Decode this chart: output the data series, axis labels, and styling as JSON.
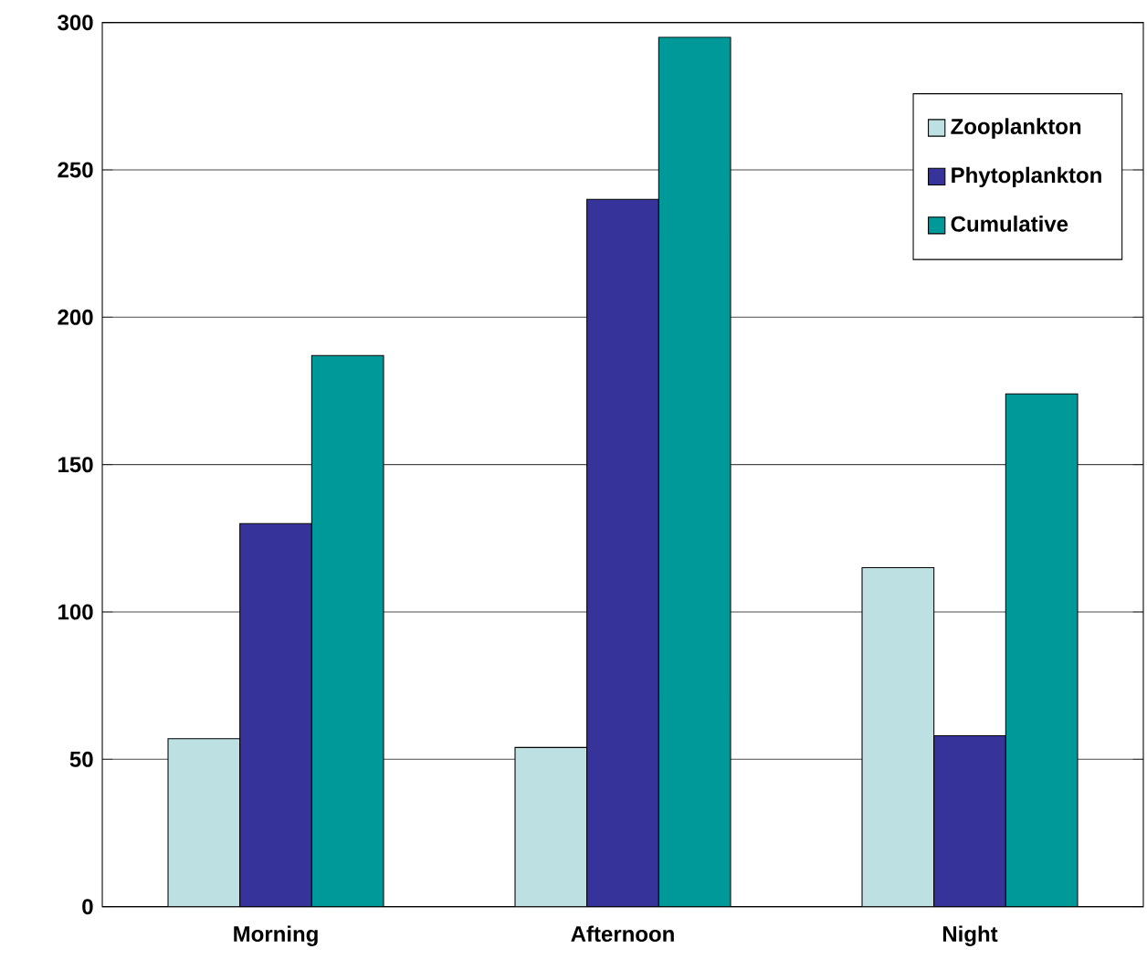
{
  "chart_data": {
    "type": "bar",
    "categories": [
      "Morning",
      "Afternoon",
      "Night"
    ],
    "series": [
      {
        "name": "Zooplankton",
        "color": "#bde0e3",
        "values": [
          57,
          54,
          115
        ]
      },
      {
        "name": "Phytoplankton",
        "color": "#36349a",
        "values": [
          130,
          240,
          58
        ]
      },
      {
        "name": "Cumulative",
        "color": "#009999",
        "values": [
          187,
          295,
          174
        ]
      }
    ],
    "ylim": [
      0,
      300
    ],
    "yticks": [
      0,
      50,
      100,
      150,
      200,
      250,
      300
    ],
    "grid": "y",
    "legend": "top right"
  }
}
